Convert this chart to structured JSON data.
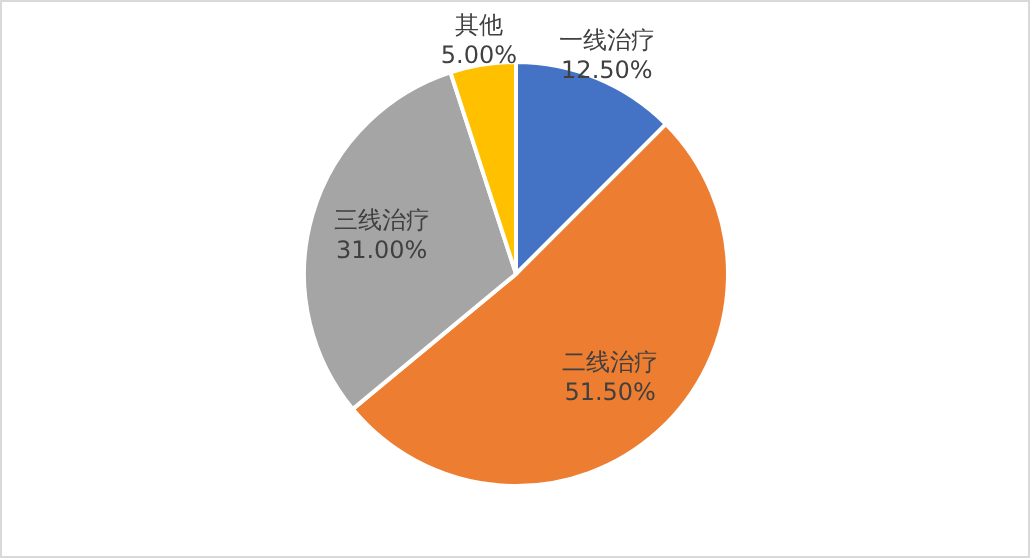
{
  "chart_data": {
    "type": "pie",
    "categories": [
      "一线治疗",
      "二线治疗",
      "三线治疗",
      "其他"
    ],
    "values": [
      12.5,
      51.5,
      31,
      5
    ],
    "value_labels": [
      "12.50%",
      "51.50%",
      "31.00%",
      "5.00%"
    ],
    "colors": [
      "#4472c4",
      "#ed7d31",
      "#a5a5a5",
      "#ffc000"
    ],
    "legend": false
  }
}
